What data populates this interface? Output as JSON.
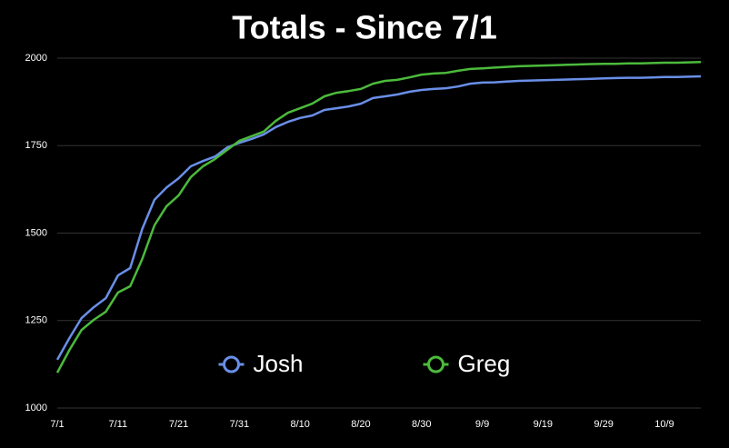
{
  "chart_data": {
    "type": "line",
    "title": "Totals - Since 7/1",
    "categories": [
      "7/1",
      null,
      null,
      null,
      null,
      "7/11",
      null,
      null,
      null,
      null,
      "7/21",
      null,
      null,
      null,
      null,
      "7/31",
      null,
      null,
      null,
      null,
      "8/10",
      null,
      null,
      null,
      null,
      "8/20",
      null,
      null,
      null,
      null,
      "8/30",
      null,
      null,
      null,
      null,
      "9/9",
      null,
      null,
      null,
      null,
      "9/19",
      null,
      null,
      null,
      null,
      "9/29",
      null,
      null,
      null,
      null,
      "10/9",
      null,
      null,
      null
    ],
    "series": [
      {
        "name": "Josh",
        "color": "#6a8fe8",
        "values": [
          1138,
          1200,
          1257,
          1288,
          1314,
          1379,
          1400,
          1512,
          1595,
          1630,
          1657,
          1691,
          1706,
          1719,
          1745,
          1758,
          1769,
          1782,
          1803,
          1818,
          1829,
          1836,
          1852,
          1857,
          1862,
          1870,
          1886,
          1891,
          1896,
          1904,
          1909,
          1912,
          1914,
          1919,
          1927,
          1930,
          1931,
          1933,
          1935,
          1936,
          1937,
          1938,
          1939,
          1940,
          1941,
          1942,
          1943,
          1944,
          1944,
          1945,
          1946,
          1946,
          1947,
          1948
        ]
      },
      {
        "name": "Greg",
        "color": "#4cba3c",
        "values": [
          1101,
          1166,
          1223,
          1252,
          1275,
          1330,
          1348,
          1426,
          1522,
          1577,
          1608,
          1660,
          1691,
          1712,
          1738,
          1764,
          1777,
          1790,
          1821,
          1844,
          1857,
          1870,
          1891,
          1901,
          1906,
          1912,
          1927,
          1935,
          1938,
          1945,
          1953,
          1956,
          1958,
          1964,
          1969,
          1971,
          1973,
          1975,
          1977,
          1978,
          1979,
          1980,
          1981,
          1982,
          1983,
          1984,
          1984,
          1985,
          1985,
          1986,
          1987,
          1987,
          1988,
          1989
        ]
      }
    ],
    "ylim": [
      1000,
      2000
    ],
    "yticks": [
      1000,
      1250,
      1500,
      1750,
      2000
    ],
    "grid": true,
    "legend": "lower-center"
  }
}
